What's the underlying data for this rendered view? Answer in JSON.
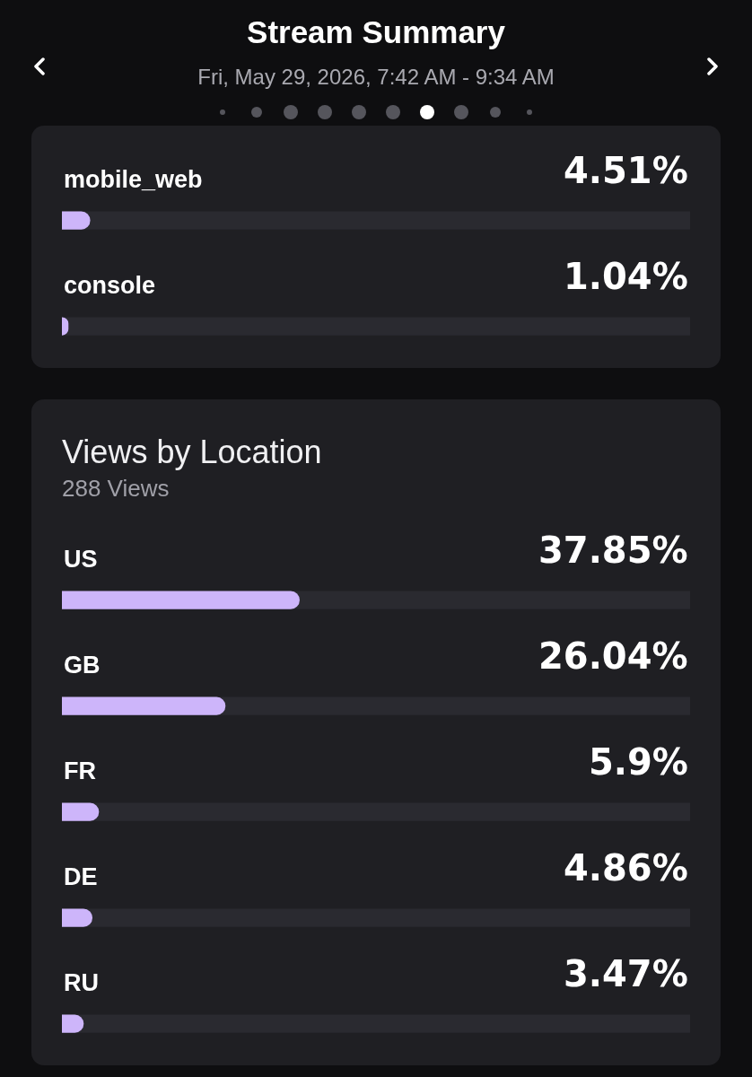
{
  "chart_data": [
    {
      "type": "bar",
      "title": "Stream Summary",
      "subtitle": "Fri, May 29, 2026, 7:42 AM - 9:34 AM",
      "orientation": "horizontal",
      "categories": [
        "mobile_web",
        "console"
      ],
      "values": [
        4.51,
        1.04
      ],
      "value_labels": [
        "4.51%",
        "1.04%"
      ],
      "color": "#cdb5fa",
      "xlim": [
        0,
        100
      ],
      "tick_labels": false
    },
    {
      "type": "bar",
      "title": "Views by Location",
      "subtitle": "288 Views",
      "orientation": "horizontal",
      "categories": [
        "US",
        "GB",
        "FR",
        "DE",
        "RU"
      ],
      "values": [
        37.85,
        26.04,
        5.9,
        4.86,
        3.47
      ],
      "value_labels": [
        "37.85%",
        "26.04%",
        "5.9%",
        "4.86%",
        "3.47%"
      ],
      "color": "#cdb5fa",
      "xlim": [
        0,
        100
      ],
      "tick_labels": false
    }
  ]
}
